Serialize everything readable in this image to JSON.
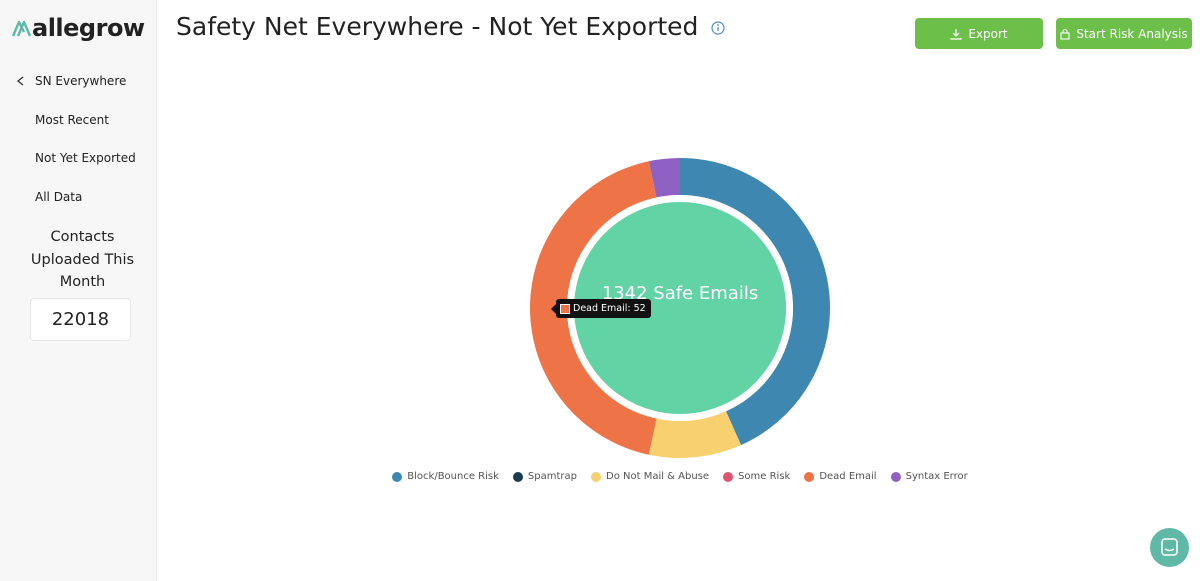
{
  "sidebar": {
    "logo": "allegrow",
    "back": "SN Everywhere",
    "nav": [
      "Most Recent",
      "Not Yet Exported",
      "All Data"
    ],
    "contacts_label": "Contacts Uploaded This Month",
    "contacts_value": 22018
  },
  "header": {
    "title": "Safety Net Everywhere - Not Yet Exported",
    "buttons": [
      "Export",
      "Start Risk Analysis"
    ]
  },
  "chart_data": {
    "type": "donut",
    "categories": [
      "Block/Bounce Risk",
      "Spamtrap",
      "Do Not Mail & Abuse",
      "Some Risk",
      "Dead Email",
      "Syntax Error"
    ],
    "values": [
      52,
      0,
      12,
      0,
      52,
      4
    ],
    "colors": [
      "#3d87b0",
      "#1d3b4f",
      "#f7d070",
      "#e0546e",
      "#ee7448",
      "#9061c4"
    ],
    "center_label": "1342 Safe Emails",
    "center_color": "#62d3a4",
    "tooltip": "Dead Email: 52"
  }
}
